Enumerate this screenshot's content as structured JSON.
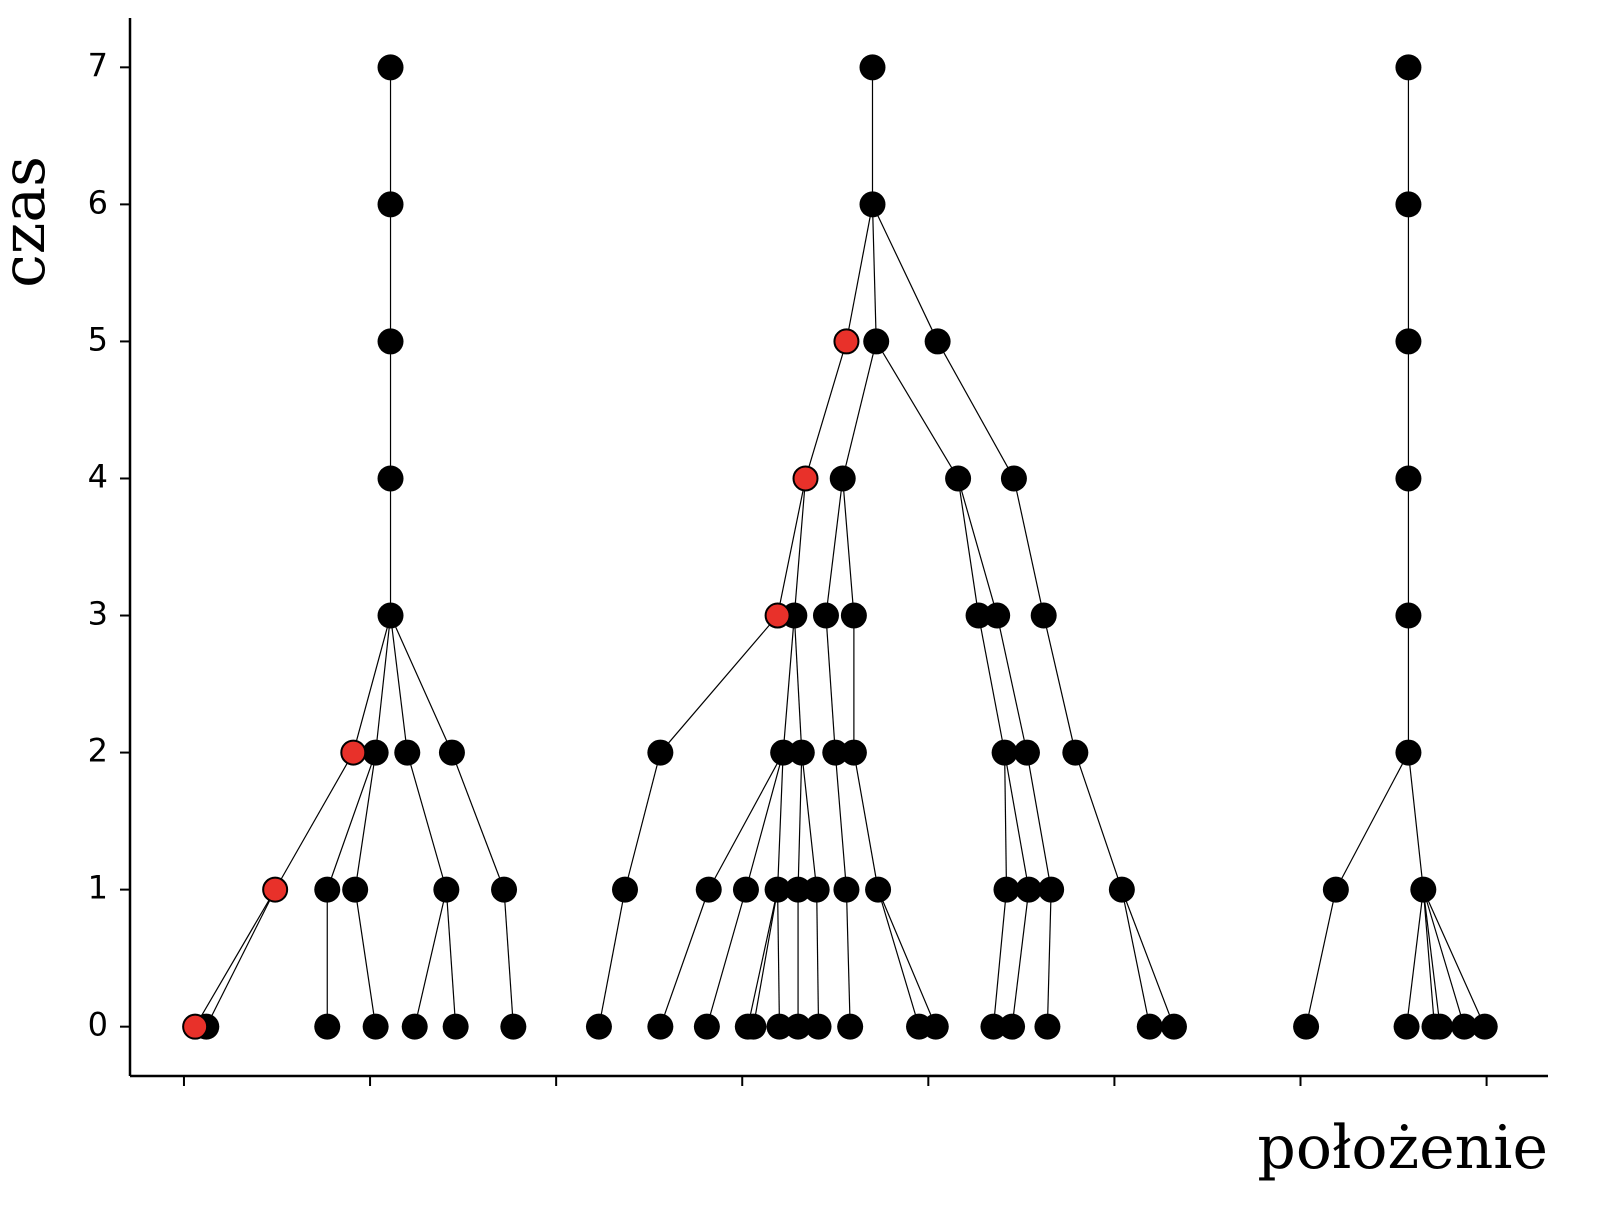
{
  "chart_data": {
    "type": "tree",
    "x_label": "położenie",
    "y_label": "czas",
    "xlim": [
      -0.29,
      7.33
    ],
    "ylim": [
      -0.36,
      7.36
    ],
    "xticks": [
      0,
      1,
      2,
      3,
      4,
      5,
      6,
      7
    ],
    "yticks": [
      0,
      1,
      2,
      3,
      4,
      5,
      6,
      7
    ],
    "color": "#000000",
    "highlight_color": "#e8312a",
    "x": [
      1.11,
      1.11,
      1.11,
      1.11,
      1.11,
      0.91,
      1.03,
      1.2,
      1.44,
      0.49,
      0.77,
      0.92,
      1.41,
      1.72,
      0.06,
      0.12,
      0.77,
      1.03,
      1.24,
      1.46,
      1.77,
      3.7,
      3.7,
      3.56,
      3.72,
      4.05,
      3.34,
      3.54,
      4.16,
      4.46,
      3.19,
      3.28,
      3.45,
      3.6,
      4.27,
      4.37,
      4.62,
      2.56,
      3.22,
      3.32,
      3.5,
      3.6,
      4.41,
      4.53,
      4.79,
      2.37,
      2.82,
      3.02,
      3.19,
      3.3,
      3.4,
      3.56,
      3.73,
      4.42,
      4.54,
      4.66,
      5.04,
      2.23,
      2.56,
      2.81,
      3.03,
      3.06,
      3.2,
      3.3,
      3.41,
      3.58,
      3.95,
      4.04,
      4.35,
      4.45,
      4.64,
      5.19,
      5.32,
      6.58,
      6.58,
      6.58,
      6.58,
      6.58,
      6.58,
      6.19,
      6.66,
      6.03,
      6.57,
      6.72,
      6.75,
      6.88,
      6.99
    ],
    "y": [
      7,
      6,
      5,
      4,
      3,
      2,
      2,
      2,
      2,
      1,
      1,
      1,
      1,
      1,
      0,
      0,
      0,
      0,
      0,
      0,
      0,
      7,
      6,
      5,
      5,
      5,
      4,
      4,
      4,
      4,
      3,
      3,
      3,
      3,
      3,
      3,
      3,
      2,
      2,
      2,
      2,
      2,
      2,
      2,
      2,
      1,
      1,
      1,
      1,
      1,
      1,
      1,
      1,
      1,
      1,
      1,
      1,
      0,
      0,
      0,
      0,
      0,
      0,
      0,
      0,
      0,
      0,
      0,
      0,
      0,
      0,
      0,
      0,
      7,
      6,
      5,
      4,
      3,
      2,
      1,
      1,
      0,
      0,
      0,
      0,
      0,
      0
    ],
    "parent": [
      null,
      0,
      1,
      2,
      3,
      4,
      4,
      4,
      4,
      5,
      6,
      6,
      7,
      8,
      9,
      9,
      10,
      11,
      12,
      12,
      13,
      null,
      21,
      22,
      22,
      22,
      23,
      24,
      24,
      25,
      26,
      26,
      27,
      27,
      28,
      28,
      29,
      30,
      31,
      31,
      32,
      33,
      34,
      35,
      36,
      37,
      38,
      38,
      38,
      39,
      39,
      40,
      41,
      42,
      42,
      43,
      44,
      45,
      46,
      47,
      48,
      48,
      48,
      49,
      50,
      51,
      52,
      52,
      53,
      54,
      55,
      56,
      56,
      null,
      73,
      74,
      75,
      76,
      77,
      78,
      78,
      79,
      80,
      80,
      80,
      80,
      80
    ],
    "highlighted": [
      5,
      9,
      14,
      23,
      26,
      30
    ]
  }
}
